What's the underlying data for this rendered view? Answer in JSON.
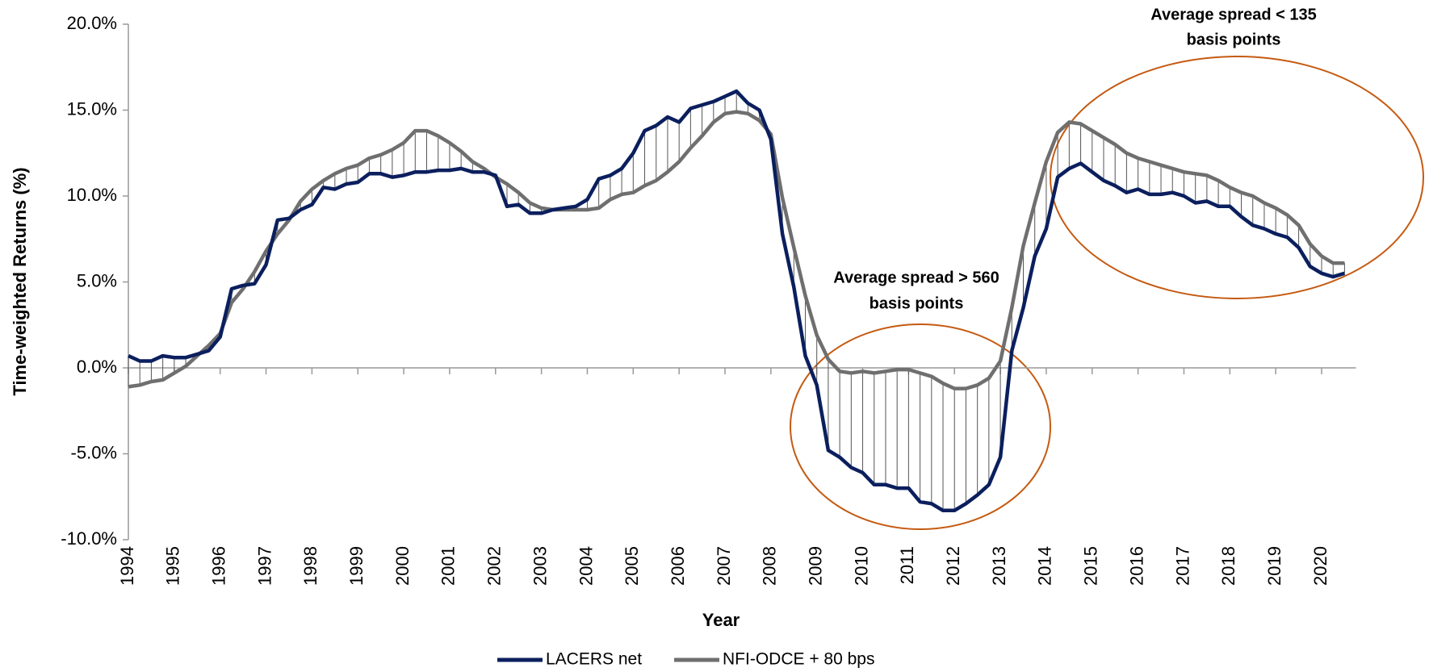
{
  "chart_data": {
    "type": "line",
    "xlabel": "Year",
    "ylabel": "Time-weighted Returns (%)",
    "x": [
      1994,
      1994.25,
      1994.5,
      1994.75,
      1995,
      1995.25,
      1995.5,
      1995.75,
      1996,
      1996.25,
      1996.5,
      1996.75,
      1997,
      1997.25,
      1997.5,
      1997.75,
      1998,
      1998.25,
      1998.5,
      1998.75,
      1999,
      1999.25,
      1999.5,
      1999.75,
      2000,
      2000.25,
      2000.5,
      2000.75,
      2001,
      2001.25,
      2001.5,
      2001.75,
      2002,
      2002.25,
      2002.5,
      2002.75,
      2003,
      2003.25,
      2003.5,
      2003.75,
      2004,
      2004.25,
      2004.5,
      2004.75,
      2005,
      2005.25,
      2005.5,
      2005.75,
      2006,
      2006.25,
      2006.5,
      2006.75,
      2007,
      2007.25,
      2007.5,
      2007.75,
      2008,
      2008.25,
      2008.5,
      2008.75,
      2009,
      2009.25,
      2009.5,
      2009.75,
      2010,
      2010.25,
      2010.5,
      2010.75,
      2011,
      2011.25,
      2011.5,
      2011.75,
      2012,
      2012.25,
      2012.5,
      2012.75,
      2013,
      2013.25,
      2013.5,
      2013.75,
      2014,
      2014.25,
      2014.5,
      2014.75,
      2015,
      2015.25,
      2015.5,
      2015.75,
      2016,
      2016.25,
      2016.5,
      2016.75,
      2017,
      2017.25,
      2017.5,
      2017.75,
      2018,
      2018.25,
      2018.5,
      2018.75,
      2019,
      2019.25,
      2019.5,
      2019.75,
      2020,
      2020.25,
      2020.5
    ],
    "series": [
      {
        "name": "LACERS net",
        "color": "#0b1f5e",
        "values": [
          0.7,
          0.4,
          0.4,
          0.7,
          0.6,
          0.6,
          0.8,
          1.0,
          1.8,
          4.6,
          4.8,
          4.9,
          6.0,
          8.6,
          8.7,
          9.2,
          9.5,
          10.5,
          10.4,
          10.7,
          10.8,
          11.3,
          11.3,
          11.1,
          11.2,
          11.4,
          11.4,
          11.5,
          11.5,
          11.6,
          11.4,
          11.4,
          11.2,
          9.4,
          9.5,
          9.0,
          9.0,
          9.2,
          9.3,
          9.4,
          9.8,
          11.0,
          11.2,
          11.6,
          12.5,
          13.8,
          14.1,
          14.6,
          14.3,
          15.1,
          15.3,
          15.5,
          15.8,
          16.1,
          15.4,
          15.0,
          13.3,
          7.8,
          4.7,
          0.7,
          -1.0,
          -4.8,
          -5.2,
          -5.8,
          -6.1,
          -6.8,
          -6.8,
          -7.0,
          -7.0,
          -7.8,
          -7.9,
          -8.3,
          -8.3,
          -7.9,
          -7.4,
          -6.8,
          -5.2,
          1.0,
          3.5,
          6.5,
          8.1,
          11.1,
          11.6,
          11.9,
          11.4,
          10.9,
          10.6,
          10.2,
          10.4,
          10.1,
          10.1,
          10.2,
          10.0,
          9.6,
          9.7,
          9.4,
          9.4,
          8.8,
          8.3,
          8.1,
          7.8,
          7.6,
          7.0,
          5.9,
          5.5,
          5.3,
          5.5
        ]
      },
      {
        "name": "NFI-ODCE + 80 bps",
        "color": "#6f6f6f",
        "values": [
          -1.1,
          -1.0,
          -0.8,
          -0.7,
          -0.3,
          0.1,
          0.7,
          1.3,
          2.0,
          3.8,
          4.6,
          5.6,
          6.8,
          7.8,
          8.6,
          9.7,
          10.4,
          10.9,
          11.3,
          11.6,
          11.8,
          12.2,
          12.4,
          12.7,
          13.1,
          13.8,
          13.8,
          13.5,
          13.1,
          12.6,
          12.0,
          11.6,
          11.1,
          10.7,
          10.2,
          9.6,
          9.3,
          9.2,
          9.2,
          9.2,
          9.2,
          9.3,
          9.8,
          10.1,
          10.2,
          10.6,
          10.9,
          11.4,
          12.0,
          12.8,
          13.5,
          14.3,
          14.8,
          14.9,
          14.8,
          14.4,
          13.6,
          9.9,
          7.0,
          4.2,
          1.9,
          0.5,
          -0.2,
          -0.3,
          -0.2,
          -0.3,
          -0.2,
          -0.1,
          -0.1,
          -0.3,
          -0.5,
          -0.9,
          -1.2,
          -1.2,
          -1.0,
          -0.6,
          0.4,
          3.5,
          7.1,
          9.6,
          12.0,
          13.7,
          14.3,
          14.2,
          13.8,
          13.4,
          13.0,
          12.5,
          12.2,
          12.0,
          11.8,
          11.6,
          11.4,
          11.3,
          11.2,
          10.9,
          10.5,
          10.2,
          10.0,
          9.6,
          9.3,
          8.9,
          8.3,
          7.2,
          6.5,
          6.1,
          6.1
        ]
      }
    ],
    "xlim": [
      1994,
      2020.75
    ],
    "xticks": [
      1994,
      1995,
      1996,
      1997,
      1998,
      1999,
      2000,
      2001,
      2002,
      2003,
      2004,
      2005,
      2006,
      2007,
      2008,
      2009,
      2010,
      2011,
      2012,
      2013,
      2014,
      2015,
      2016,
      2017,
      2018,
      2019,
      2020
    ],
    "ylim": [
      -10,
      20
    ],
    "yticks": [
      {
        "value": -10,
        "label": "-10.0%"
      },
      {
        "value": -5,
        "label": "-5.0%"
      },
      {
        "value": 0,
        "label": "0.0%"
      },
      {
        "value": 5,
        "label": "5.0%"
      },
      {
        "value": 10,
        "label": "10.0%"
      },
      {
        "value": 15,
        "label": "15.0%"
      },
      {
        "value": 20,
        "label": "20.0%"
      }
    ],
    "annotations": [
      {
        "lines": [
          "Average spread > 560",
          "basis points"
        ]
      },
      {
        "lines": [
          "Average spread < 135",
          "basis points"
        ]
      }
    ],
    "legend": "bottom"
  }
}
